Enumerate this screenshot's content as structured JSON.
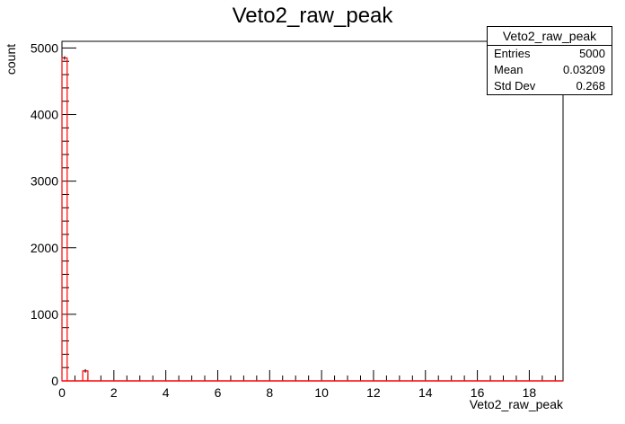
{
  "chart_data": {
    "type": "histogram",
    "title": "Veto2_raw_peak",
    "xlabel": "Veto2_raw_peak",
    "ylabel": "count",
    "xlim": [
      0,
      19.3
    ],
    "ylim": [
      0,
      5100
    ],
    "x_ticks": [
      0,
      2,
      4,
      6,
      8,
      10,
      12,
      14,
      16,
      18
    ],
    "y_ticks": [
      0,
      1000,
      2000,
      3000,
      4000,
      5000
    ],
    "bin_width": 0.2,
    "bins": [
      {
        "x0": 0.0,
        "count": 4850
      },
      {
        "x0": 0.8,
        "count": 150
      }
    ],
    "line_color": "#ff0000",
    "grid": false,
    "legend": "none"
  },
  "stats": {
    "title": "Veto2_raw_peak",
    "rows": [
      {
        "label": "Entries",
        "value": "5000"
      },
      {
        "label": "Mean",
        "value": "0.03209"
      },
      {
        "label": "Std Dev",
        "value": "0.268"
      }
    ]
  }
}
